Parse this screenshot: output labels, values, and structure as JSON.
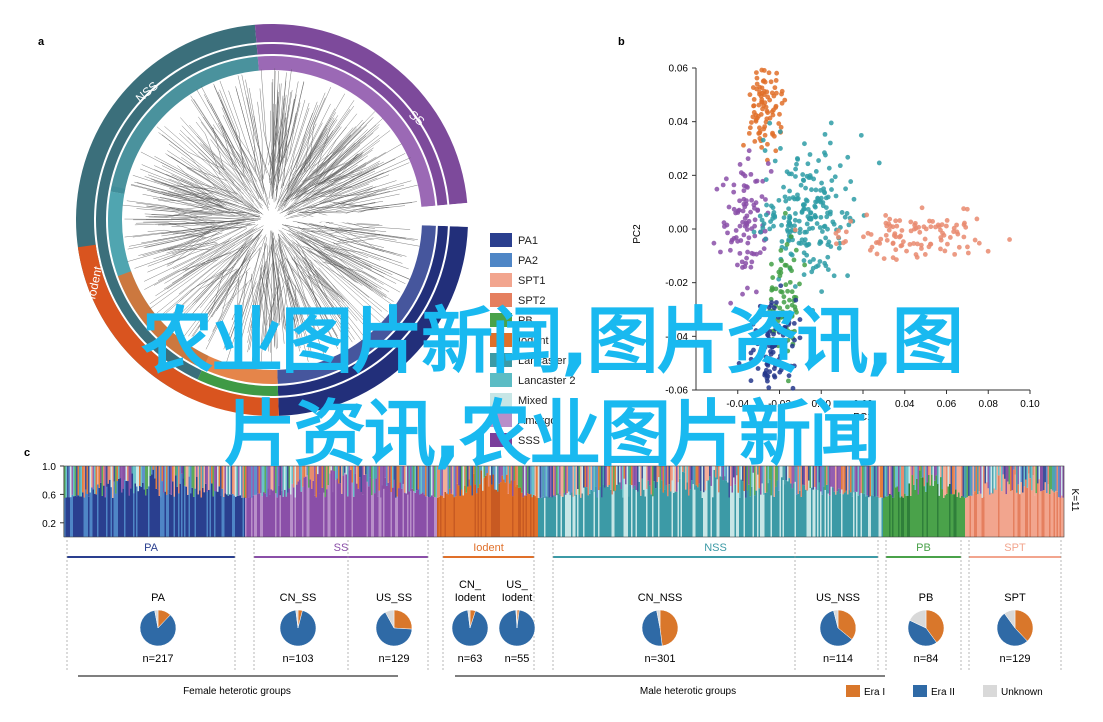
{
  "panels": {
    "a": "a",
    "b": "b",
    "c": "c"
  },
  "tree": {
    "ring_labels": [
      {
        "id": "nss",
        "text": "NSS"
      },
      {
        "id": "ss",
        "text": "SS"
      },
      {
        "id": "iodent",
        "text": "Iodent"
      }
    ],
    "legend": [
      {
        "label": "PA1",
        "color": "#2a3f8f"
      },
      {
        "label": "PA2",
        "color": "#4f86c6"
      },
      {
        "label": "SPT1",
        "color": "#f2a58e"
      },
      {
        "label": "SPT2",
        "color": "#e57f5f"
      },
      {
        "label": "PB",
        "color": "#4aa24a"
      },
      {
        "label": "Iodent",
        "color": "#e0702a"
      },
      {
        "label": "Lancaster 1",
        "color": "#3c9aa6"
      },
      {
        "label": "Lancaster 2",
        "color": "#5bbcc4"
      },
      {
        "label": "Mixed",
        "color": "#c7e6e6"
      },
      {
        "label": "Amargo",
        "color": "#b88fc9"
      },
      {
        "label": "SSS",
        "color": "#7b3f9b"
      }
    ],
    "colors": {
      "nss": "#3b6f7b",
      "ss": "#7d4a9b",
      "pa": "#222f7a",
      "pb": "#3f9a45",
      "iodent": "#d9541f",
      "mixed": "#bfe3e6"
    }
  },
  "chart_data": [
    {
      "type": "scatter",
      "panel": "b",
      "xlabel": "PC1",
      "ylabel": "PC2",
      "xlim": [
        -0.06,
        0.1
      ],
      "ylim": [
        -0.06,
        0.06
      ],
      "xticks": [
        "-0.04",
        "-0.02",
        "0.00",
        "0.02",
        "0.04",
        "0.06",
        "0.08",
        "0.10"
      ],
      "yticks": [
        "0.06",
        "0.04",
        "0.02",
        "0.00",
        "-0.02",
        "-0.04",
        "-0.06"
      ],
      "series": [
        {
          "group": "Iodent",
          "color": "#e0702a",
          "center": [
            -0.027,
            0.044
          ],
          "spread": [
            0.004,
            0.008
          ],
          "count": 90
        },
        {
          "group": "SS",
          "color": "#8a4fa8",
          "center": [
            -0.035,
            0.004
          ],
          "spread": [
            0.006,
            0.011
          ],
          "count": 100
        },
        {
          "group": "NSS",
          "color": "#2e9ca6",
          "center": [
            -0.008,
            0.006
          ],
          "spread": [
            0.011,
            0.012
          ],
          "count": 220
        },
        {
          "group": "SPT",
          "color": "#e98a6f",
          "center": [
            0.045,
            -0.002
          ],
          "spread": [
            0.017,
            0.004
          ],
          "count": 110
        },
        {
          "group": "PB",
          "color": "#43a047",
          "center": [
            -0.017,
            -0.025
          ],
          "spread": [
            0.004,
            0.01
          ],
          "count": 70
        },
        {
          "group": "PA",
          "color": "#26388c",
          "center": [
            -0.024,
            -0.045
          ],
          "spread": [
            0.006,
            0.01
          ],
          "count": 110
        }
      ]
    },
    {
      "type": "bar",
      "panel": "c",
      "yticks": [
        "1.0",
        "0.6",
        "0.2"
      ],
      "k_label": "K=11",
      "groups": [
        {
          "label": "PA",
          "color": "#2a3f8f"
        },
        {
          "label": "SS",
          "color": "#8a4fa8"
        },
        {
          "label": "Iodent",
          "color": "#e0702a"
        },
        {
          "label": "NSS",
          "color": "#3c9aa6"
        },
        {
          "label": "PB",
          "color": "#4aa24a"
        },
        {
          "label": "SPT",
          "color": "#f2a58e"
        }
      ],
      "pies": [
        {
          "label": "PA",
          "n": "n=217",
          "era1": 0.12,
          "era2": 0.85,
          "unknown": 0.03
        },
        {
          "label": "CN_SS",
          "n": "n=103",
          "era1": 0.04,
          "era2": 0.94,
          "unknown": 0.02
        },
        {
          "label": "US_SS",
          "n": "n=129",
          "era1": 0.26,
          "era2": 0.66,
          "unknown": 0.08
        },
        {
          "label": "CN_\nIodent",
          "n": "n=63",
          "era1": 0.05,
          "era2": 0.93,
          "unknown": 0.02
        },
        {
          "label": "US_\nIodent",
          "n": "n=55",
          "era1": 0.02,
          "era2": 0.97,
          "unknown": 0.01
        },
        {
          "label": "CN_NSS",
          "n": "n=301",
          "era1": 0.48,
          "era2": 0.49,
          "unknown": 0.03
        },
        {
          "label": "US_NSS",
          "n": "n=114",
          "era1": 0.36,
          "era2": 0.6,
          "unknown": 0.04
        },
        {
          "label": "PB",
          "n": "n=84",
          "era1": 0.4,
          "era2": 0.42,
          "unknown": 0.18
        },
        {
          "label": "SPT",
          "n": "n=129",
          "era1": 0.38,
          "era2": 0.52,
          "unknown": 0.1
        }
      ],
      "bottom_labels": {
        "female": "Female heterotic groups",
        "male": "Male heterotic groups"
      },
      "legend": [
        {
          "label": "Era I",
          "color": "#d9772b"
        },
        {
          "label": "Era II",
          "color": "#2f6aa6"
        },
        {
          "label": "Unknown",
          "color": "#d9d9d9"
        }
      ]
    }
  ],
  "overlay": {
    "line1": "农业图片新闻,图片资讯,图",
    "line2": "片资讯,农业图片新闻",
    "color": "#19b9f0"
  }
}
